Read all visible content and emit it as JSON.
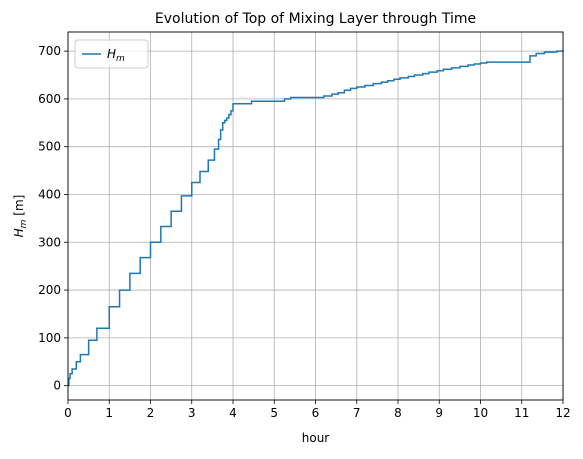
{
  "chart_data": {
    "type": "line",
    "title": "Evolution of Top of Mixing Layer through Time",
    "xlabel": "hour",
    "ylabel": "H",
    "ylabel_sub": "m",
    "ylabel_unit": " [m]",
    "xlim": [
      0,
      12
    ],
    "ylim": [
      -30,
      740
    ],
    "xticks": [
      0,
      1,
      2,
      3,
      4,
      5,
      6,
      7,
      8,
      9,
      10,
      11,
      12
    ],
    "xtick_labels": [
      "0",
      "1",
      "2",
      "3",
      "4",
      "5",
      "6",
      "7",
      "8",
      "9",
      "10",
      "11",
      "12"
    ],
    "yticks": [
      0,
      100,
      200,
      300,
      400,
      500,
      600,
      700
    ],
    "ytick_labels": [
      "0",
      "100",
      "200",
      "300",
      "400",
      "500",
      "600",
      "700"
    ],
    "grid": true,
    "legend_position": "top-left",
    "series": [
      {
        "name": "H",
        "name_sub": "m",
        "color": "#1f77b4",
        "step": true,
        "x": [
          0,
          0.02,
          0.05,
          0.1,
          0.2,
          0.3,
          0.5,
          0.7,
          1.0,
          1.25,
          1.5,
          1.75,
          2.0,
          2.25,
          2.5,
          2.75,
          3.0,
          3.2,
          3.4,
          3.55,
          3.65,
          3.7,
          3.75,
          3.8,
          3.85,
          3.9,
          3.95,
          4.0,
          4.45,
          5.25,
          5.4,
          6.2,
          6.4,
          6.55,
          6.7,
          6.85,
          7.0,
          7.2,
          7.4,
          7.6,
          7.75,
          7.9,
          8.05,
          8.25,
          8.4,
          8.6,
          8.75,
          8.95,
          9.1,
          9.3,
          9.5,
          9.7,
          9.85,
          10.0,
          10.15,
          11.2,
          11.35,
          11.55,
          11.85,
          12.0
        ],
        "y": [
          0,
          15,
          25,
          35,
          50,
          65,
          95,
          120,
          165,
          200,
          235,
          268,
          300,
          333,
          365,
          397,
          425,
          448,
          472,
          495,
          515,
          535,
          550,
          555,
          560,
          567,
          575,
          590,
          595,
          600,
          603,
          606,
          610,
          613,
          618,
          622,
          625,
          628,
          632,
          635,
          638,
          641,
          644,
          647,
          650,
          653,
          656,
          659,
          662,
          665,
          668,
          671,
          673,
          675,
          677,
          690,
          695,
          698,
          700,
          702
        ]
      }
    ]
  }
}
